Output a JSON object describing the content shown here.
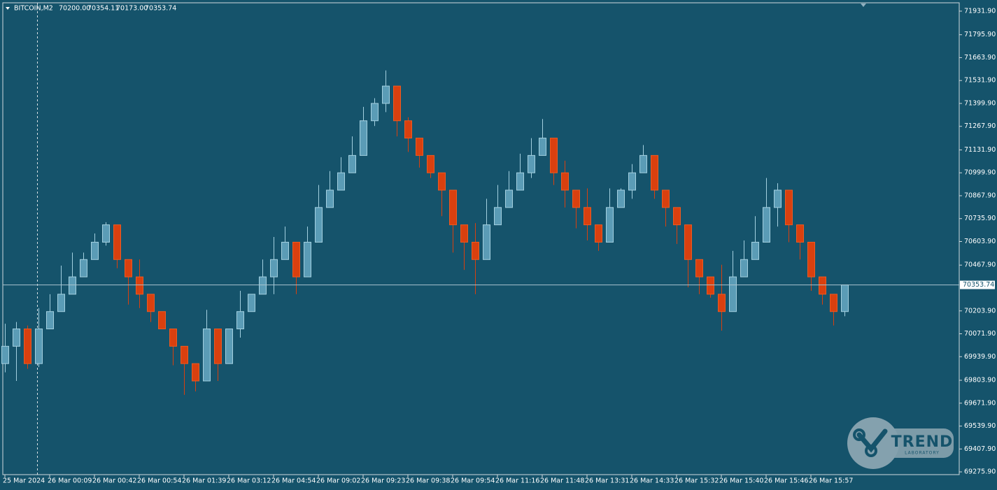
{
  "chart_data": {
    "type": "candlestick",
    "header": {
      "symbol": "BITCOIN,M2",
      "ohlc": [
        "70200.00",
        "70354.11",
        "70173.00",
        "70353.74"
      ]
    },
    "watermark": {
      "title": "TREND",
      "subtitle": "LABORATORY"
    },
    "background": "#15536b",
    "up_color": "#5b9cb6",
    "up_edge": "#a3d0e0",
    "down_color": "#d9400f",
    "down_edge": "#ee5a20",
    "categories": [
      "25 Mar 2024",
      null,
      null,
      null,
      "26 Mar 00:09",
      null,
      null,
      null,
      "26 Mar 00:42",
      null,
      null,
      null,
      "26 Mar 00:54",
      null,
      null,
      null,
      "26 Mar 01:39",
      null,
      null,
      null,
      "26 Mar 03:12",
      null,
      null,
      null,
      "26 Mar 04:54",
      null,
      null,
      null,
      "26 Mar 09:02",
      null,
      null,
      null,
      "26 Mar 09:23",
      null,
      null,
      null,
      "26 Mar 09:38",
      null,
      null,
      null,
      "26 Mar 09:54",
      null,
      null,
      null,
      "26 Mar 11:16",
      null,
      null,
      null,
      "26 Mar 11:48",
      null,
      null,
      null,
      "26 Mar 13:31",
      null,
      null,
      null,
      "26 Mar 14:33",
      null,
      null,
      null,
      "26 Mar 15:32",
      null,
      null,
      null,
      "26 Mar 15:40",
      null,
      null,
      null,
      "26 Mar 15:46",
      null,
      null,
      null,
      "26 Mar 15:57",
      null,
      null,
      null
    ],
    "open": [
      69900,
      70000,
      70100,
      69900,
      70100,
      70200,
      70300,
      70400,
      70500,
      70600,
      70700,
      70500,
      70400,
      70300,
      70200,
      70100,
      70000,
      69900,
      69800,
      70100,
      69900,
      70100,
      70200,
      70300,
      70400,
      70500,
      70600,
      70400,
      70600,
      70800,
      70900,
      71000,
      71100,
      71300,
      71400,
      71500,
      71300,
      71200,
      71100,
      71000,
      70900,
      70700,
      70600,
      70500,
      70700,
      70800,
      70900,
      71000,
      71100,
      71200,
      71000,
      70900,
      70800,
      70700,
      70600,
      70800,
      70900,
      71000,
      71100,
      70900,
      70800,
      70700,
      70500,
      70400,
      70300,
      70200,
      70400,
      70500,
      70600,
      70800,
      70900,
      70700,
      70600,
      70400,
      70300,
      70200
    ],
    "high": [
      70130,
      70140,
      70120,
      70220,
      70300,
      70465,
      70540,
      70540,
      70650,
      70715,
      70700,
      70500,
      70500,
      70300,
      70200,
      70100,
      70000,
      69900,
      70210,
      70100,
      70100,
      70320,
      70300,
      70500,
      70630,
      70690,
      70600,
      70690,
      70930,
      71010,
      71090,
      71210,
      71380,
      71430,
      71590,
      71500,
      71320,
      71200,
      71100,
      71000,
      70900,
      70700,
      70710,
      70850,
      70930,
      71010,
      71110,
      71200,
      71310,
      71200,
      71070,
      70900,
      70910,
      70700,
      70910,
      70910,
      71050,
      71160,
      71100,
      70900,
      70800,
      70700,
      70500,
      70400,
      70470,
      70550,
      70610,
      70750,
      70970,
      70940,
      70900,
      70700,
      70600,
      70400,
      70300,
      70354.11
    ],
    "low": [
      69850,
      69800,
      69870,
      69880,
      70100,
      70200,
      70300,
      70400,
      70500,
      70580,
      70450,
      70240,
      70220,
      70140,
      70100,
      69890,
      69720,
      69740,
      69800,
      69800,
      69900,
      70050,
      70200,
      70300,
      70300,
      70500,
      70300,
      70400,
      70600,
      70800,
      70900,
      71000,
      71100,
      71270,
      71350,
      71210,
      71120,
      71030,
      70970,
      70750,
      70540,
      70440,
      70300,
      70500,
      70700,
      70800,
      70900,
      70970,
      71100,
      70930,
      70800,
      70680,
      70610,
      70550,
      70600,
      70800,
      70850,
      71000,
      70850,
      70690,
      70590,
      70340,
      70300,
      70280,
      70090,
      70200,
      70400,
      70500,
      70600,
      70690,
      70600,
      70500,
      70320,
      70240,
      70120,
      70173
    ],
    "close": [
      70000,
      70100,
      69900,
      70100,
      70200,
      70300,
      70400,
      70500,
      70600,
      70700,
      70500,
      70400,
      70300,
      70200,
      70100,
      70000,
      69900,
      69800,
      70100,
      69900,
      70100,
      70200,
      70300,
      70400,
      70500,
      70600,
      70400,
      70600,
      70800,
      70900,
      71000,
      71100,
      71300,
      71400,
      71500,
      71300,
      71200,
      71100,
      71000,
      70900,
      70700,
      70600,
      70500,
      70700,
      70800,
      70900,
      71000,
      71100,
      71200,
      71000,
      70900,
      70800,
      70700,
      70600,
      70800,
      70900,
      71000,
      71100,
      70900,
      70800,
      70700,
      70500,
      70400,
      70300,
      70200,
      70400,
      70500,
      70600,
      70800,
      70900,
      70700,
      70600,
      70400,
      70300,
      70200,
      70353.74
    ],
    "ylim": [
      69260,
      71980
    ],
    "yticks": [
      {
        "value": 71931.9,
        "label": "71931.90"
      },
      {
        "value": 71795.9,
        "label": "71795.90"
      },
      {
        "value": 71663.9,
        "label": "71663.90"
      },
      {
        "value": 71531.9,
        "label": "71531.90"
      },
      {
        "value": 71399.9,
        "label": "71399.90"
      },
      {
        "value": 71267.9,
        "label": "71267.90"
      },
      {
        "value": 71131.9,
        "label": "71131.90"
      },
      {
        "value": 70999.9,
        "label": "70999.90"
      },
      {
        "value": 70867.9,
        "label": "70867.90"
      },
      {
        "value": 70735.9,
        "label": "70735.90"
      },
      {
        "value": 70603.9,
        "label": "70603.90"
      },
      {
        "value": 70467.9,
        "label": "70467.90"
      },
      {
        "value": 70203.9,
        "label": "70203.90"
      },
      {
        "value": 70071.9,
        "label": "70071.90"
      },
      {
        "value": 69939.9,
        "label": "69939.90"
      },
      {
        "value": 69803.9,
        "label": "69803.90"
      },
      {
        "value": 69671.9,
        "label": "69671.90"
      },
      {
        "value": 69539.9,
        "label": "69539.90"
      },
      {
        "value": 69407.9,
        "label": "69407.90"
      },
      {
        "value": 69275.9,
        "label": "69275.90"
      }
    ]
  }
}
